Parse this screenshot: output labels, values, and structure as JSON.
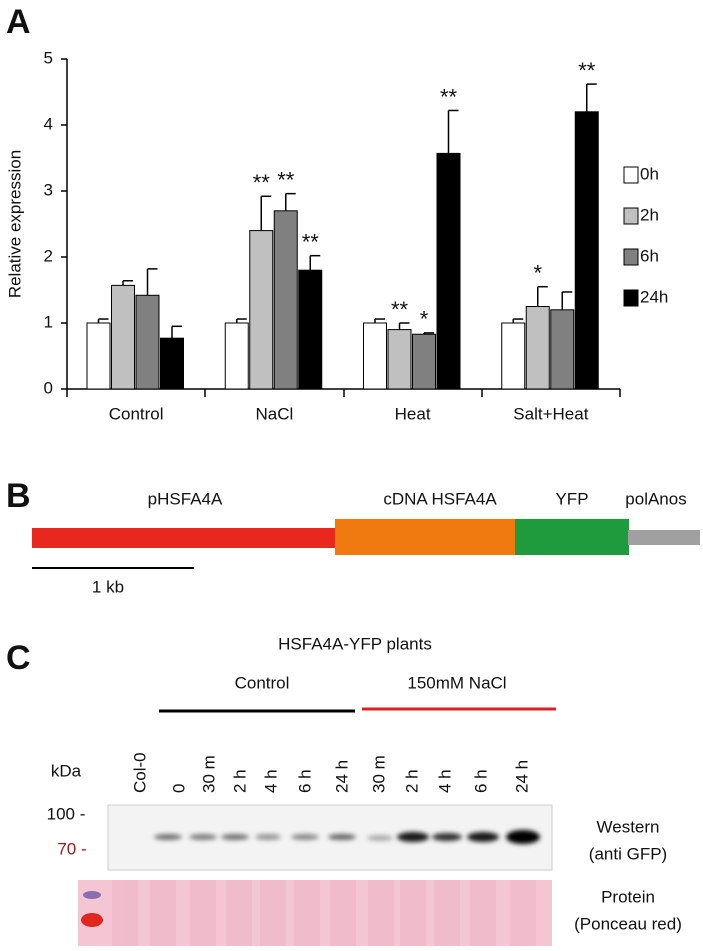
{
  "chart_data": {
    "type": "bar",
    "panel_label": "A",
    "y_label": "Relative expression",
    "categories": [
      "Control",
      "NaCl",
      "Heat",
      "Salt+Heat"
    ],
    "series": [
      {
        "name": "0h",
        "color": "#ffffff",
        "values": [
          1.0,
          1.0,
          1.0,
          1.0
        ],
        "errors": [
          0.06,
          0.06,
          0.06,
          0.06
        ],
        "significance": [
          null,
          null,
          null,
          null
        ]
      },
      {
        "name": "2h",
        "color": "#c0c0c0",
        "values": [
          1.57,
          2.4,
          0.9,
          1.25
        ],
        "errors": [
          0.07,
          0.52,
          0.1,
          0.3
        ],
        "significance": [
          null,
          "**",
          "**",
          "*"
        ]
      },
      {
        "name": "6h",
        "color": "#808080",
        "values": [
          1.42,
          2.7,
          0.83,
          1.2
        ],
        "errors": [
          0.4,
          0.26,
          0.02,
          0.27
        ],
        "significance": [
          null,
          "**",
          "*",
          null
        ]
      },
      {
        "name": "24h",
        "color": "#000000",
        "values": [
          0.77,
          1.8,
          3.57,
          4.2
        ],
        "errors": [
          0.18,
          0.22,
          0.65,
          0.42
        ],
        "significance": [
          null,
          "**",
          "**",
          "**"
        ]
      }
    ],
    "ylim": [
      0,
      5
    ],
    "yticks": [
      0,
      1,
      2,
      3,
      4,
      5
    ],
    "grid": false
  },
  "panel_b": {
    "label": "B",
    "segments": [
      "pHSFA4A",
      "cDNA HSFA4A",
      "YFP",
      "polAnos"
    ],
    "scale_label": "1 kb"
  },
  "panel_c": {
    "label": "C",
    "title": "HSFA4A-YFP plants",
    "groups": [
      "Control",
      "150mM NaCl"
    ],
    "unit": "kDa",
    "lanes": [
      "Col-0",
      "0",
      "30 m",
      "2 h",
      "4 h",
      "6 h",
      "24 h",
      "30 m",
      "2 h",
      "4 h",
      "6 h",
      "24 h"
    ],
    "markers": [
      "100 -",
      "70 -"
    ],
    "western_label": [
      "Western",
      "(anti GFP)"
    ],
    "protein_label": [
      "Protein",
      "(Ponceau red)"
    ]
  }
}
